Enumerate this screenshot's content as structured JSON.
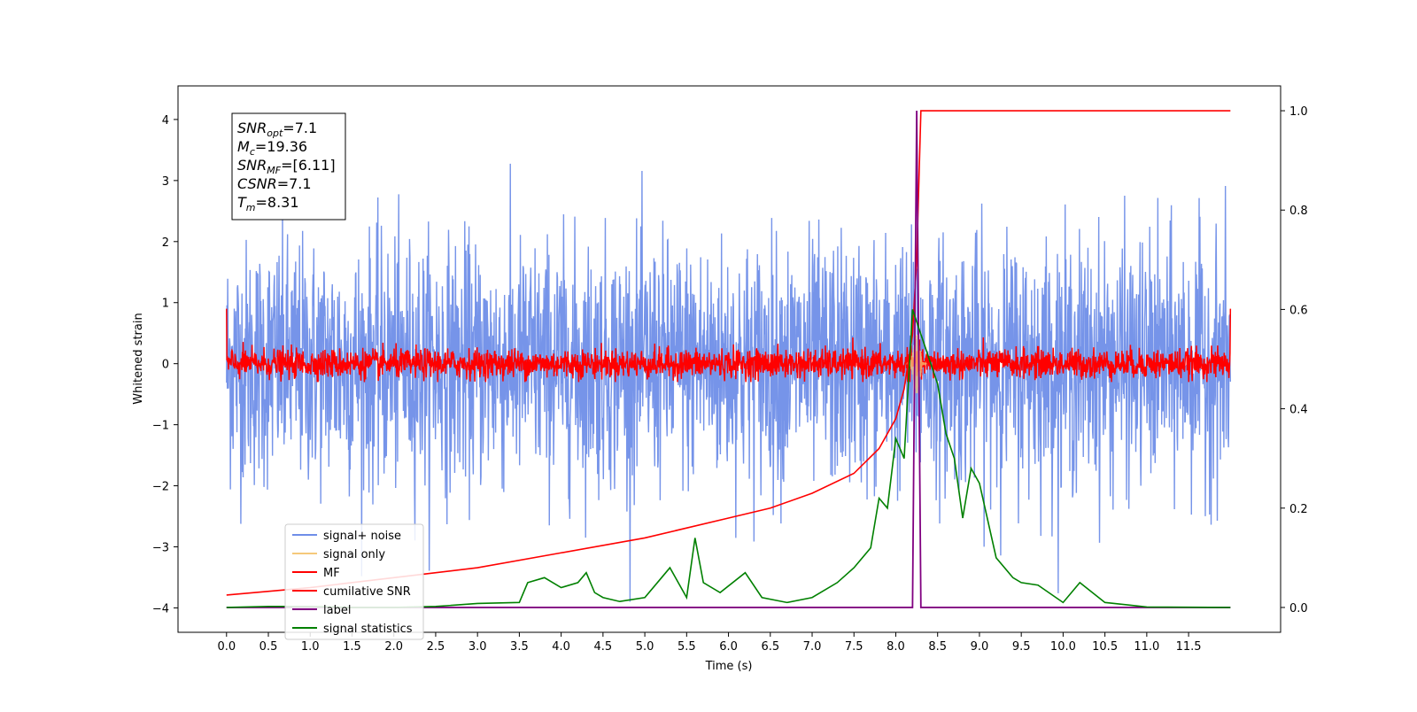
{
  "chart_data": {
    "type": "line",
    "xlabel": "Time (s)",
    "ylabel": "Whitened strain",
    "ylabel_right": "",
    "xlim": [
      -0.58,
      12.6
    ],
    "ylim": [
      -4.4,
      4.55
    ],
    "ylim_right": [
      -0.05,
      1.05
    ],
    "x_ticks": [
      "0.0",
      "0.5",
      "1.0",
      "1.5",
      "2.0",
      "2.5",
      "3.0",
      "3.5",
      "4.0",
      "4.5",
      "5.0",
      "5.5",
      "6.0",
      "6.5",
      "7.0",
      "7.5",
      "8.0",
      "8.5",
      "9.0",
      "9.5",
      "10.0",
      "10.5",
      "11.0",
      "11.5"
    ],
    "y_ticks": [
      "-4",
      "-3",
      "-2",
      "-1",
      "0",
      "1",
      "2",
      "3",
      "4"
    ],
    "y_ticks_right": [
      "0.0",
      "0.2",
      "0.4",
      "0.6",
      "0.8",
      "1.0"
    ],
    "info_box": {
      "lines": [
        {
          "base": "SNR",
          "sub": "opt",
          "value": "=7.1"
        },
        {
          "base": "M",
          "sub": "c",
          "value": "=19.36"
        },
        {
          "base": "SNR",
          "sub": "MF",
          "value": "=[6.11]"
        },
        {
          "base": "CSNR",
          "sub": "",
          "value": "=7.1"
        },
        {
          "base": "T",
          "sub": "m",
          "value": "=8.31"
        }
      ]
    },
    "legend": {
      "position": "lower-left",
      "entries": [
        {
          "label": "signal+ noise",
          "color": "#6f8ee8"
        },
        {
          "label": "signal only",
          "color": "#f5c97a"
        },
        {
          "label": "MF",
          "color": "#ff0000"
        },
        {
          "label": "cumilative SNR",
          "color": "#ff0000"
        },
        {
          "label": "label",
          "color": "#800080"
        },
        {
          "label": "signal statistics",
          "color": "#008000"
        }
      ]
    },
    "series": [
      {
        "name": "signal+ noise",
        "axis": "left",
        "kind": "noise",
        "color": "#6f8ee8",
        "t_start": 0.0,
        "t_end": 12.0,
        "amplitude_std": 1.0,
        "range": [
          -3.9,
          4.2
        ]
      },
      {
        "name": "signal only",
        "axis": "left",
        "kind": "burst",
        "color": "#f5c97a",
        "t_center": 8.25,
        "amplitude": 0.5
      },
      {
        "name": "MF",
        "axis": "left",
        "kind": "noise",
        "color": "#ff0000",
        "t_start": 0.0,
        "t_end": 12.0,
        "amplitude_std": 0.12,
        "range": [
          -0.3,
          1.0
        ]
      },
      {
        "name": "cumilative SNR",
        "axis": "right",
        "x": [
          0.0,
          1.0,
          2.0,
          3.0,
          4.0,
          5.0,
          6.0,
          6.5,
          7.0,
          7.5,
          7.8,
          8.0,
          8.1,
          8.2,
          8.25,
          8.3,
          12.0
        ],
        "y": [
          0.025,
          0.04,
          0.06,
          0.08,
          0.11,
          0.14,
          0.18,
          0.2,
          0.23,
          0.27,
          0.32,
          0.38,
          0.44,
          0.55,
          0.7,
          1.0,
          1.0
        ]
      },
      {
        "name": "label",
        "axis": "right",
        "x": [
          0.0,
          8.2,
          8.25,
          8.3,
          12.0
        ],
        "y": [
          0.0,
          0.0,
          1.0,
          0.0,
          0.0
        ]
      },
      {
        "name": "signal statistics",
        "axis": "right",
        "x": [
          0.0,
          0.5,
          1.0,
          1.5,
          2.0,
          2.5,
          3.0,
          3.5,
          3.6,
          3.8,
          4.0,
          4.2,
          4.3,
          4.4,
          4.5,
          4.7,
          5.0,
          5.2,
          5.3,
          5.5,
          5.6,
          5.7,
          5.9,
          6.2,
          6.4,
          6.7,
          7.0,
          7.3,
          7.5,
          7.7,
          7.8,
          7.9,
          8.0,
          8.1,
          8.2,
          8.3,
          8.4,
          8.5,
          8.6,
          8.7,
          8.8,
          8.9,
          9.0,
          9.2,
          9.4,
          9.5,
          9.7,
          10.0,
          10.2,
          10.5,
          11.0,
          12.0
        ],
        "y": [
          0.0,
          0.002,
          0.002,
          0.0,
          0.0,
          0.002,
          0.008,
          0.01,
          0.05,
          0.06,
          0.04,
          0.05,
          0.07,
          0.03,
          0.02,
          0.012,
          0.02,
          0.06,
          0.08,
          0.02,
          0.14,
          0.05,
          0.03,
          0.07,
          0.02,
          0.01,
          0.02,
          0.05,
          0.08,
          0.12,
          0.22,
          0.2,
          0.34,
          0.3,
          0.6,
          0.55,
          0.5,
          0.45,
          0.35,
          0.3,
          0.18,
          0.28,
          0.25,
          0.1,
          0.06,
          0.05,
          0.045,
          0.01,
          0.05,
          0.01,
          0.001,
          0.0
        ]
      }
    ]
  }
}
